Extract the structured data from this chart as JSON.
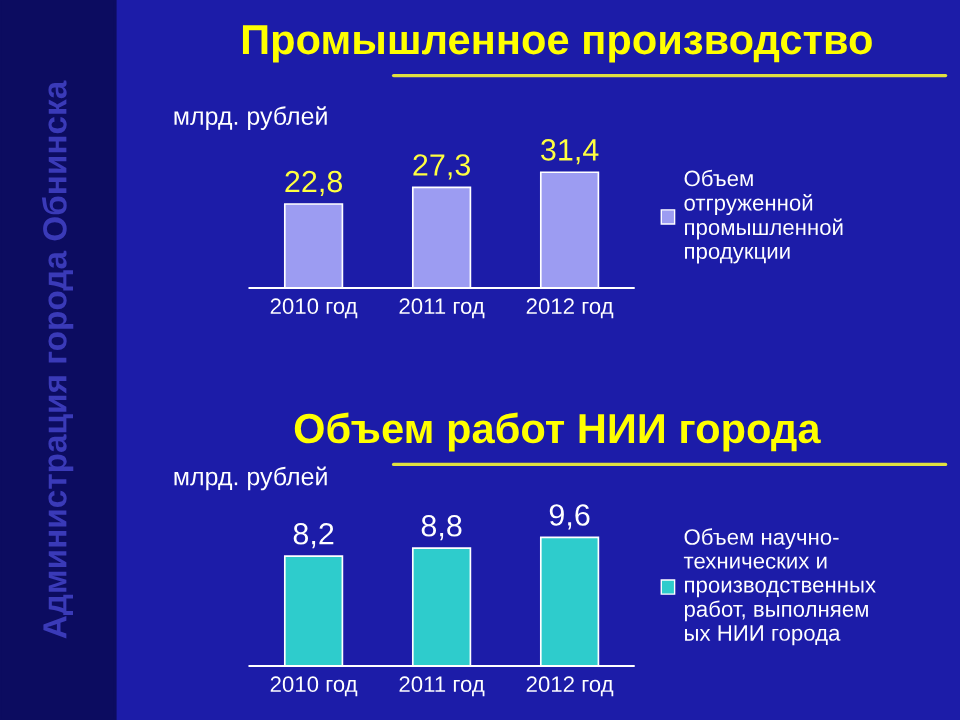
{
  "chart_data": [
    {
      "type": "bar",
      "title": "Промышленное производство",
      "ylabel": "млрд. рублей",
      "categories": [
        "2010 год",
        "2011 год",
        "2012 год"
      ],
      "series": [
        {
          "name": "Объем\nотгруженной\nпромышленной\nпродукции",
          "color": "#9c9cf2",
          "values": [
            22.8,
            27.3,
            31.4
          ],
          "value_labels": [
            "22,8",
            "27,3",
            "31,4"
          ]
        }
      ],
      "legend": "right",
      "annotations": [
        "Администрация города Обнинска"
      ]
    },
    {
      "type": "bar",
      "title": "Объем работ НИИ города",
      "ylabel": "млрд. рублей",
      "categories": [
        "2010 год",
        "2011 год",
        "2012 год"
      ],
      "series": [
        {
          "name": "Объем научно-\nтехнических и\nпроизводственных\nработ, выполняем\nых НИИ города",
          "color": "#2ecccc",
          "values": [
            8.2,
            8.8,
            9.6
          ],
          "value_labels": [
            "8,2",
            "8,8",
            "9,6"
          ]
        }
      ],
      "legend": "right"
    }
  ]
}
